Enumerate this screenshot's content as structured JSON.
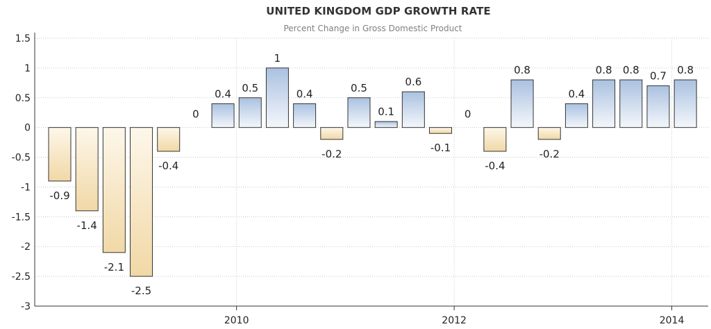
{
  "chart_data": {
    "type": "bar",
    "title": "UNITED KINGDOM GDP GROWTH RATE",
    "subtitle": "Percent Change in Gross Domestic Product",
    "xlabel": "",
    "ylabel": "",
    "ylim": [
      -3,
      1.5
    ],
    "yticks": [
      "1.5",
      "1",
      "0.5",
      "0",
      "-0.5",
      "-1",
      "-1.5",
      "-2",
      "-2.5",
      "-3"
    ],
    "ytick_values": [
      1.5,
      1,
      0.5,
      0,
      -0.5,
      -1,
      -1.5,
      -2,
      -2.5,
      -3
    ],
    "xticks": [
      {
        "label": "2010",
        "index": 6.5
      },
      {
        "label": "2012",
        "index": 14.5
      },
      {
        "label": "2014",
        "index": 22.5
      }
    ],
    "grid": true,
    "values": [
      -0.9,
      -1.4,
      -2.1,
      -2.5,
      -0.4,
      0,
      0.4,
      0.5,
      1,
      0.4,
      -0.2,
      0.5,
      0.1,
      0.6,
      -0.1,
      0,
      -0.4,
      0.8,
      -0.2,
      0.4,
      0.8,
      0.8,
      0.7,
      0.8
    ],
    "value_labels": [
      "-0.9",
      "-1.4",
      "-2.1",
      "-2.5",
      "-0.4",
      "0",
      "0.4",
      "0.5",
      "1",
      "0.4",
      "-0.2",
      "0.5",
      "0.1",
      "0.6",
      "-0.1",
      "0",
      "-0.4",
      "0.8",
      "-0.2",
      "0.4",
      "0.8",
      "0.8",
      "0.7",
      "0.8"
    ],
    "colors": {
      "positive_top": "#aac1e0",
      "positive_bottom": "#f4f7fb",
      "negative_top": "#fdf7ea",
      "negative_bottom": "#f1d8a6",
      "bar_stroke": "#333333",
      "grid": "#c8c8c8",
      "axis": "#333333",
      "text": "#222222"
    }
  }
}
